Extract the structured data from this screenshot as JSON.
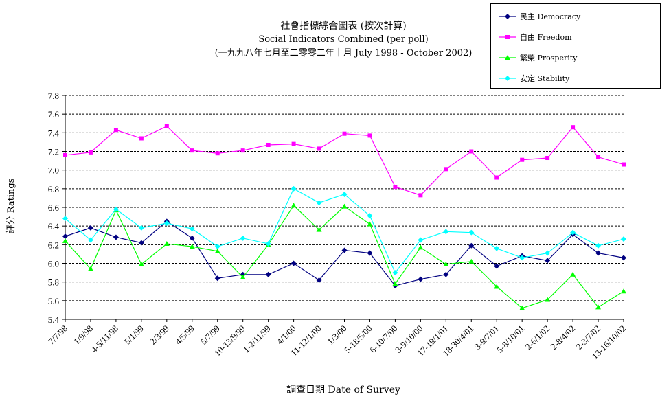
{
  "chart_data": {
    "type": "line",
    "title": "社會指標綜合圖表 (按次計算)",
    "subtitle": "Social Indicators Combined (per poll)",
    "subtitle2": "(一九九八年七月至二零零二年十月 July 1998 - October 2002)",
    "xlabel": "調查日期 Date of Survey",
    "ylabel": "評分 Ratings",
    "ylim": [
      5.4,
      7.8
    ],
    "yticks": [
      "7.8",
      "7.6",
      "7.4",
      "7.2",
      "7.0",
      "6.8",
      "6.6",
      "6.4",
      "6.2",
      "6.0",
      "5.8",
      "5.6",
      "5.4"
    ],
    "grid": true,
    "legend_position": "top-right",
    "categories": [
      "7/7/98",
      "1/9/98",
      "4-5/11/98",
      "5/1/99",
      "2/3/99",
      "4/5/99",
      "5/7/99",
      "10-13/9/99",
      "1-2/11/99",
      "4/1/00",
      "11-12/1/00",
      "1/3/00",
      "5-18/5/00",
      "6-10/7/00",
      "3-9/10/00",
      "17-19/1/01",
      "18-30/4/01",
      "3-9/7/01",
      "5-8/10/01",
      "2-6/1/02",
      "2-8/4/02",
      "2-3/7/02",
      "13-16/10/02"
    ],
    "series": [
      {
        "name": "民主 Democracy",
        "color": "#000080",
        "marker": "diamond",
        "values": [
          6.29,
          6.38,
          6.28,
          6.22,
          6.45,
          6.27,
          5.84,
          5.88,
          5.88,
          6.0,
          5.82,
          6.14,
          6.11,
          5.76,
          5.83,
          5.88,
          6.19,
          5.97,
          6.08,
          6.03,
          6.31,
          6.11,
          6.06
        ]
      },
      {
        "name": "自由 Freedom",
        "color": "#ff00ff",
        "marker": "square",
        "values": [
          7.16,
          7.19,
          7.43,
          7.34,
          7.47,
          7.21,
          7.18,
          7.21,
          7.27,
          7.28,
          7.23,
          7.39,
          7.37,
          6.82,
          6.73,
          7.01,
          7.2,
          6.92,
          7.11,
          7.13,
          7.46,
          7.14,
          7.06
        ]
      },
      {
        "name": "繁榮 Prosperity",
        "color": "#00ff00",
        "marker": "triangle",
        "values": [
          6.24,
          5.94,
          6.57,
          5.99,
          6.21,
          6.18,
          6.13,
          5.85,
          6.2,
          6.62,
          6.36,
          6.61,
          6.42,
          5.78,
          6.17,
          5.99,
          6.02,
          5.75,
          5.52,
          5.61,
          5.88,
          5.53,
          5.7
        ]
      },
      {
        "name": "安定 Stability",
        "color": "#00ffff",
        "marker": "diamond",
        "values": [
          6.48,
          6.25,
          6.58,
          6.38,
          6.43,
          6.37,
          6.18,
          6.27,
          6.21,
          6.8,
          6.65,
          6.74,
          6.51,
          5.9,
          6.25,
          6.34,
          6.33,
          6.16,
          6.06,
          6.11,
          6.33,
          6.19,
          6.26
        ]
      }
    ]
  }
}
